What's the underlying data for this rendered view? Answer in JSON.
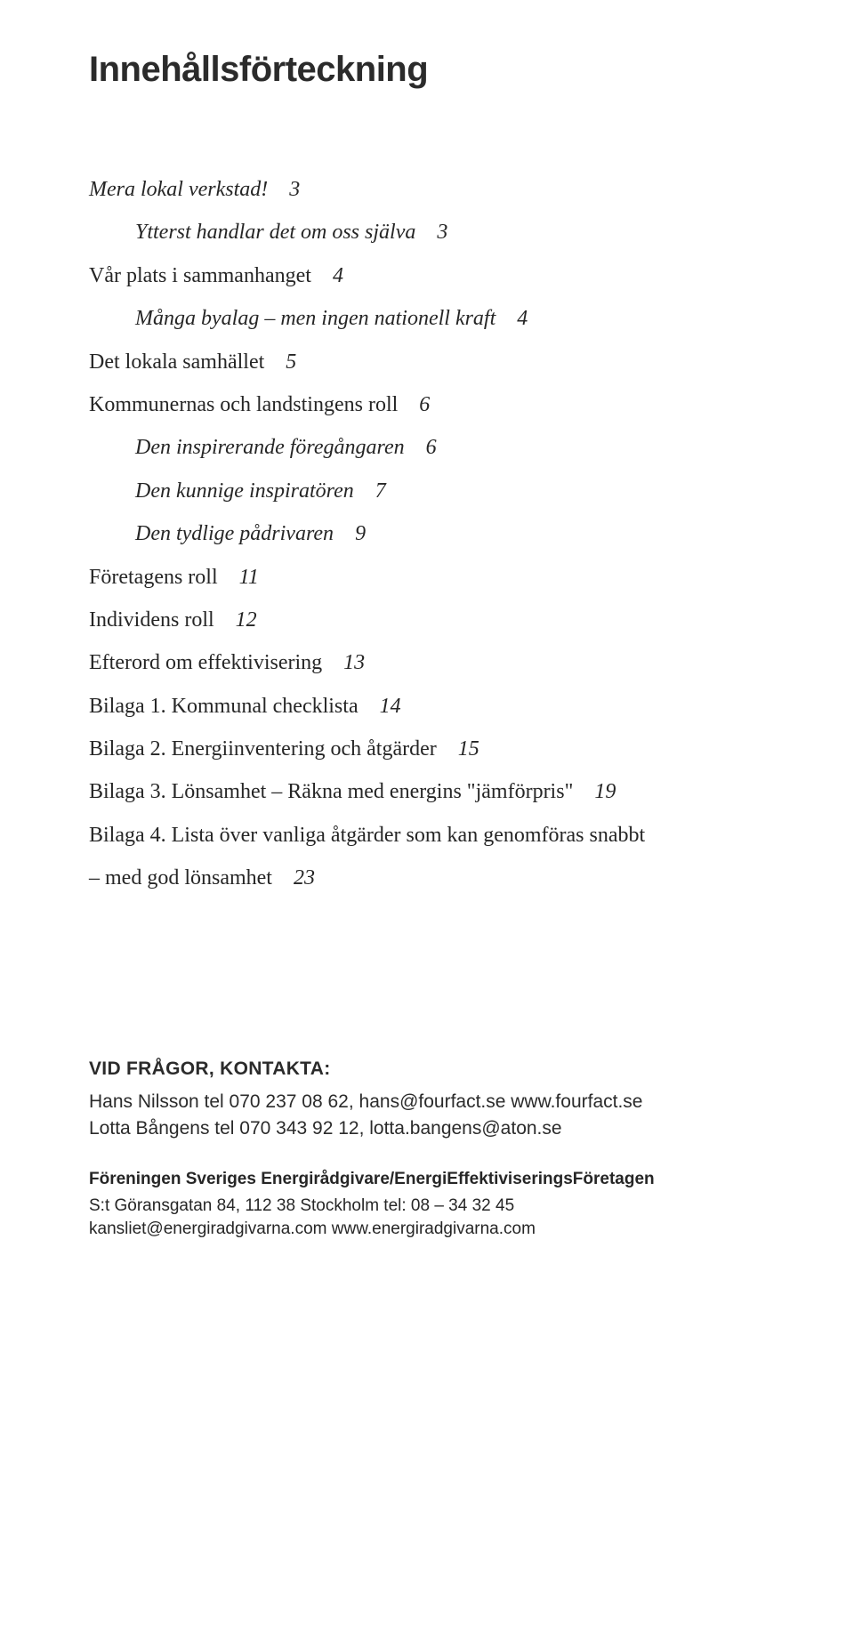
{
  "title": "Innehållsförteckning",
  "toc": {
    "l1": {
      "label": "Mera lokal verkstad!",
      "page": "3",
      "italic": true,
      "indent": false
    },
    "l2": {
      "label": "Ytterst handlar det om oss själva",
      "page": "3",
      "italic": true,
      "indent": true
    },
    "l3": {
      "label": "Vår plats i sammanhanget",
      "page": "4",
      "italic": false,
      "indent": false
    },
    "l4": {
      "label": "Många byalag – men ingen nationell kraft",
      "page": "4",
      "italic": true,
      "indent": true
    },
    "l5": {
      "label": "Det lokala samhället",
      "page": "5",
      "italic": false,
      "indent": false
    },
    "l6": {
      "label": "Kommunernas och landstingens roll",
      "page": "6",
      "italic": false,
      "indent": false
    },
    "l7": {
      "label": "Den inspirerande föregångaren",
      "page": "6",
      "italic": true,
      "indent": true
    },
    "l8": {
      "label": "Den kunnige inspiratören",
      "page": "7",
      "italic": true,
      "indent": true
    },
    "l9": {
      "label": "Den tydlige pådrivaren",
      "page": "9",
      "italic": true,
      "indent": true
    },
    "l10": {
      "label": "Företagens roll",
      "page": "11",
      "italic": false,
      "indent": false
    },
    "l11": {
      "label": "Individens roll",
      "page": "12",
      "italic": false,
      "indent": false
    },
    "l12": {
      "label": "Efterord om effektivisering",
      "page": "13",
      "italic": false,
      "indent": false
    },
    "l13": {
      "label": "Bilaga 1. Kommunal checklista",
      "page": "14",
      "italic": false,
      "indent": false
    },
    "l14": {
      "label": "Bilaga 2. Energiinventering och åtgärder",
      "page": "15",
      "italic": false,
      "indent": false
    },
    "l15": {
      "label": "Bilaga 3. Lönsamhet – Räkna med energins \"jämförpris\"",
      "page": "19",
      "italic": false,
      "indent": false
    },
    "l16a": {
      "label": "Bilaga 4. Lista över vanliga åtgärder som kan genomföras snabbt"
    },
    "l16b": {
      "label": "– med god lönsamhet",
      "page": "23"
    }
  },
  "contact": {
    "heading": "VID FRÅGOR, KONTAKTA:",
    "line1": "Hans Nilsson tel 070 237 08 62, hans@fourfact.se  www.fourfact.se",
    "line2": "Lotta Bångens tel 070 343 92 12, lotta.bangens@aton.se"
  },
  "org": {
    "name": "Föreningen Sveriges Energirådgivare/EnergiEffektiviseringsFöretagen",
    "addr": "S:t Göransgatan 84, 112 38 Stockholm    tel: 08 – 34 32 45",
    "web": "kansliet@energiradgivarna.com    www.energiradgivarna.com"
  }
}
